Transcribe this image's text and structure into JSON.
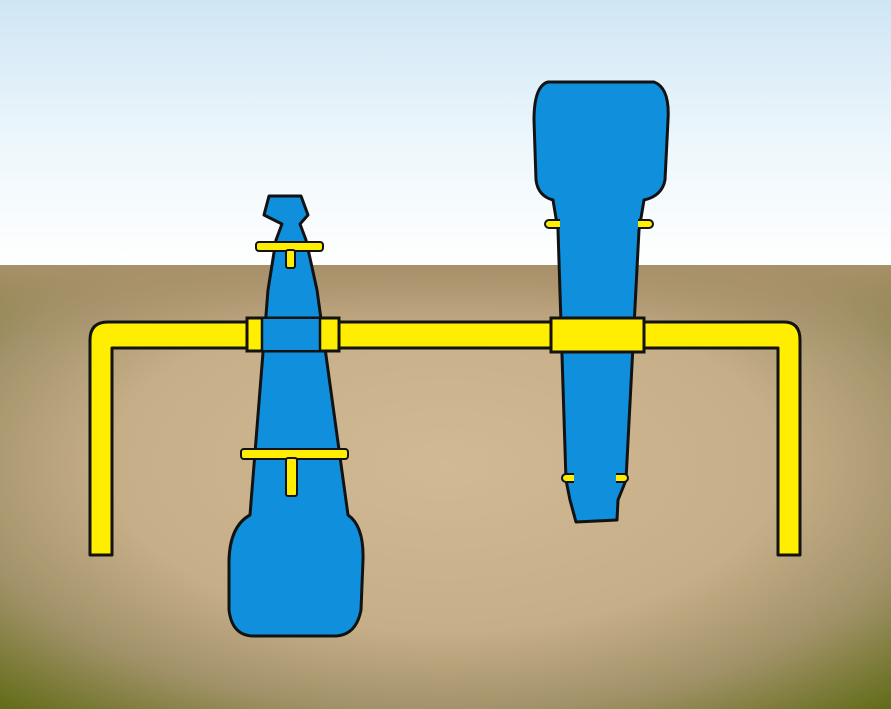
{
  "scene": {
    "colors": {
      "sky_top": "#cfe6f4",
      "sky_bottom": "#ffffff",
      "ground_top": "#a8916a",
      "ground_center": "#d0b994",
      "ground_edge": "#5e6a14",
      "device_fill": "#0f8fdc",
      "device_outline": "#121212",
      "bar_fill": "#ffee00",
      "bar_outline": "#121212"
    },
    "elements": [
      {
        "name": "sky",
        "icon": "sky-gradient"
      },
      {
        "name": "ground",
        "icon": "soil-gradient"
      },
      {
        "name": "left-blue-device",
        "icon": "inverted-tapered-device"
      },
      {
        "name": "right-blue-device",
        "icon": "upright-tapered-device"
      },
      {
        "name": "yellow-pipe-frame",
        "icon": "u-shaped-bar"
      }
    ]
  }
}
